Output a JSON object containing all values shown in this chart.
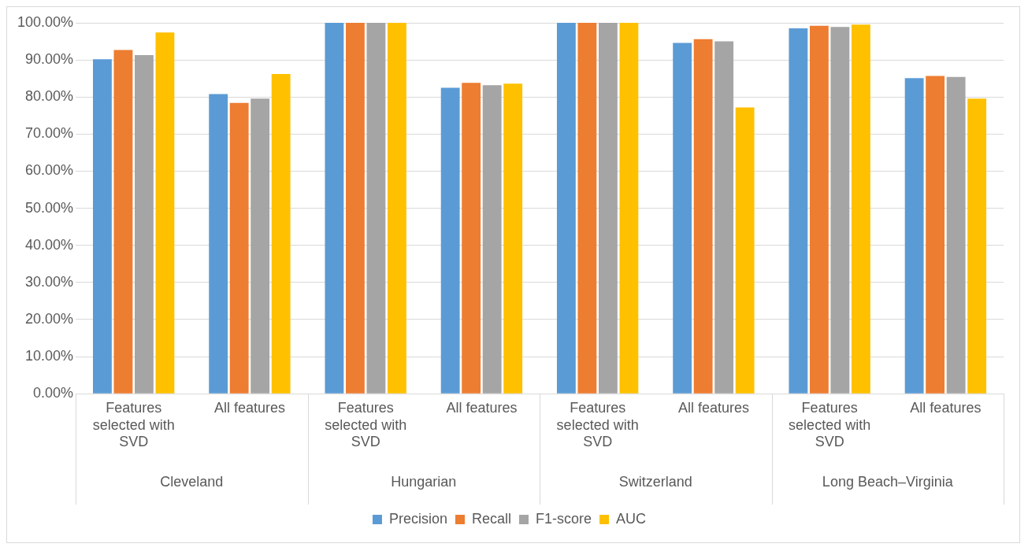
{
  "chart_data": {
    "type": "bar",
    "categories": [
      "Features selected with SVD",
      "All features",
      "Features selected with SVD",
      "All features",
      "Features selected with SVD",
      "All features",
      "Features selected with SVD",
      "All features"
    ],
    "annotations": [
      "Cleveland",
      "Hungarian",
      "Switzerland",
      "Long Beach–Virginia"
    ],
    "series": [
      {
        "name": "Precision",
        "color": "#5b9bd5",
        "values": [
          90.2,
          80.8,
          100,
          82.5,
          100,
          94.6,
          98.5,
          85.1
        ]
      },
      {
        "name": "Recall",
        "color": "#ed7d31",
        "values": [
          92.7,
          78.4,
          100,
          83.8,
          100,
          95.6,
          99.2,
          85.7
        ]
      },
      {
        "name": "F1-score",
        "color": "#a5a5a5",
        "values": [
          91.3,
          79.6,
          100,
          83.2,
          100,
          95.0,
          98.9,
          85.4
        ]
      },
      {
        "name": "AUC",
        "color": "#ffc000",
        "values": [
          97.4,
          86.2,
          100,
          83.6,
          100,
          77.2,
          99.5,
          79.6
        ]
      }
    ],
    "ylim": [
      0,
      100
    ],
    "yticks": [
      {
        "value": 0,
        "label": "0.00%"
      },
      {
        "value": 10,
        "label": "10.00%"
      },
      {
        "value": 20,
        "label": "20.00%"
      },
      {
        "value": 30,
        "label": "30.00%"
      },
      {
        "value": 40,
        "label": "40.00%"
      },
      {
        "value": 50,
        "label": "50.00%"
      },
      {
        "value": 60,
        "label": "60.00%"
      },
      {
        "value": 70,
        "label": "70.00%"
      },
      {
        "value": 80,
        "label": "80.00%"
      },
      {
        "value": 90,
        "label": "90.00%"
      },
      {
        "value": 100,
        "label": "100.00%"
      }
    ],
    "grid": "y",
    "legend": "bottom"
  }
}
